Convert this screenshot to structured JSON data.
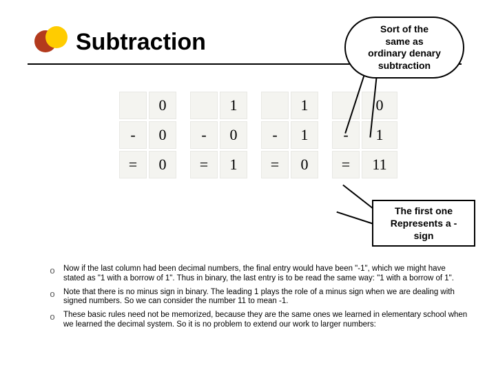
{
  "title": "Subtraction",
  "callout1": {
    "text": "Sort of the\nsame as\nordinary denary\nsubtraction",
    "border_color": "#000000",
    "background": "#ffffff",
    "font_weight": "bold"
  },
  "callout2": {
    "text": "The first one\nRepresents a -\nsign",
    "border_color": "#000000",
    "background": "#ffffff",
    "font_weight": "bold"
  },
  "decoration": {
    "circle_red": "#b33a1d",
    "circle_yellow": "#ffcc00"
  },
  "table": {
    "cell_background": "#f4f4f0",
    "cell_border": "#e8e8e4",
    "font_family": "Times New Roman",
    "rows": [
      {
        "op": "",
        "cols": [
          [
            "",
            "0"
          ],
          [
            "",
            "1"
          ],
          [
            "",
            "1"
          ],
          [
            "",
            "0"
          ]
        ]
      },
      {
        "op": "-",
        "cols": [
          [
            "-",
            "0"
          ],
          [
            "-",
            "0"
          ],
          [
            "-",
            "1"
          ],
          [
            "-",
            "1"
          ]
        ]
      },
      {
        "op": "=",
        "cols": [
          [
            "=",
            "0"
          ],
          [
            "=",
            "1"
          ],
          [
            "=",
            "0"
          ],
          [
            "=",
            "11"
          ]
        ]
      }
    ]
  },
  "bullets": [
    "Now if the last column had been decimal numbers, the final entry would have been \"-1\", which we might have stated as \"1 with a borrow of 1\". Thus in binary, the last entry is to be read the same way: \"1 with a borrow of 1\".",
    "Note that there is no minus sign in binary. The leading 1 plays the role of a minus sign when we are dealing with signed numbers. So we can consider the number 11 to mean -1.",
    "These basic rules need not be memorized, because they are the same ones we learned in elementary school when we learned the decimal system. So it is no problem to extend our work to larger numbers:"
  ],
  "bullet_marker": "o",
  "styles": {
    "page_background": "#ffffff",
    "title_fontsize": 34,
    "bullet_fontsize": 11.5,
    "callout_fontsize": 14
  }
}
